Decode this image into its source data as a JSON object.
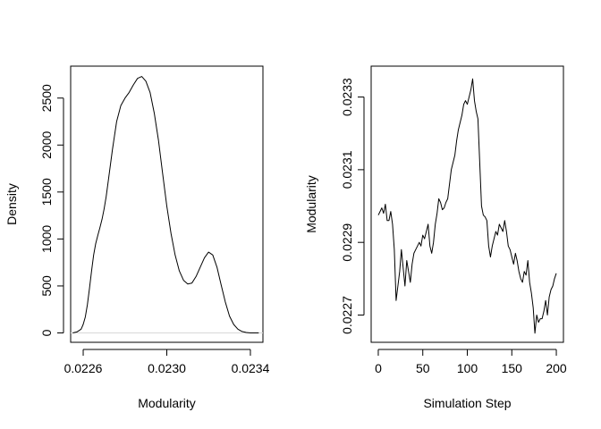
{
  "chart_data": [
    {
      "type": "line",
      "xlabel": "Modularity",
      "ylabel": "Density",
      "xlim": [
        0.02254,
        0.02346
      ],
      "ylim": [
        -100,
        2840
      ],
      "xticks": [
        {
          "value": 0.0226,
          "label": "0.0226"
        },
        {
          "value": 0.023,
          "label": "0.0230"
        },
        {
          "value": 0.0234,
          "label": "0.0234"
        }
      ],
      "yticks": [
        {
          "value": 0,
          "label": "0"
        },
        {
          "value": 500,
          "label": "500"
        },
        {
          "value": 1000,
          "label": "1000"
        },
        {
          "value": 1500,
          "label": "1500"
        },
        {
          "value": 2000,
          "label": "2000"
        },
        {
          "value": 2500,
          "label": "2500"
        }
      ],
      "zero_line": true,
      "series": [
        {
          "color": "#000000",
          "x": [
            0.02255,
            0.02257,
            0.02259,
            0.0226,
            0.02261,
            0.02262,
            0.02263,
            0.02264,
            0.02265,
            0.02266,
            0.02267,
            0.02268,
            0.02269,
            0.0227,
            0.02271,
            0.02272,
            0.02274,
            0.02276,
            0.02278,
            0.0228,
            0.02282,
            0.02284,
            0.02286,
            0.02288,
            0.0229,
            0.02292,
            0.02294,
            0.02296,
            0.02298,
            0.023,
            0.02302,
            0.02304,
            0.02306,
            0.02308,
            0.0231,
            0.02312,
            0.02314,
            0.02316,
            0.02318,
            0.0232,
            0.02322,
            0.02324,
            0.02326,
            0.02328,
            0.0233,
            0.02332,
            0.02334,
            0.02336,
            0.02338,
            0.0234,
            0.02342,
            0.02344
          ],
          "y": [
            0,
            10,
            40,
            90,
            170,
            300,
            470,
            660,
            830,
            950,
            1040,
            1120,
            1210,
            1320,
            1450,
            1620,
            1950,
            2250,
            2420,
            2500,
            2560,
            2640,
            2710,
            2730,
            2680,
            2560,
            2340,
            2050,
            1700,
            1350,
            1060,
            830,
            660,
            560,
            520,
            530,
            600,
            700,
            800,
            860,
            830,
            700,
            510,
            330,
            180,
            90,
            40,
            15,
            5,
            0,
            0,
            0
          ]
        }
      ]
    },
    {
      "type": "line",
      "xlabel": "Simulation Step",
      "ylabel": "Modularity",
      "xlim": [
        -8,
        208
      ],
      "ylim": [
        0.022625,
        0.023385
      ],
      "xticks": [
        {
          "value": 0,
          "label": "0"
        },
        {
          "value": 50,
          "label": "50"
        },
        {
          "value": 100,
          "label": "100"
        },
        {
          "value": 150,
          "label": "150"
        },
        {
          "value": 200,
          "label": "200"
        }
      ],
      "yticks": [
        {
          "value": 0.0227,
          "label": "0.0227"
        },
        {
          "value": 0.0229,
          "label": "0.0229"
        },
        {
          "value": 0.0231,
          "label": "0.0231"
        },
        {
          "value": 0.0233,
          "label": "0.0233"
        }
      ],
      "series": [
        {
          "color": "#000000",
          "x": [
            0,
            2,
            4,
            6,
            8,
            10,
            12,
            14,
            16,
            18,
            20,
            22,
            24,
            26,
            28,
            30,
            32,
            34,
            36,
            38,
            40,
            42,
            44,
            46,
            48,
            50,
            52,
            54,
            56,
            58,
            60,
            62,
            64,
            66,
            68,
            70,
            72,
            74,
            76,
            78,
            80,
            82,
            84,
            86,
            88,
            90,
            92,
            94,
            96,
            98,
            100,
            102,
            104,
            106,
            108,
            110,
            112,
            114,
            116,
            118,
            120,
            122,
            124,
            126,
            128,
            130,
            132,
            134,
            136,
            138,
            140,
            142,
            144,
            146,
            148,
            150,
            152,
            154,
            156,
            158,
            160,
            162,
            164,
            166,
            168,
            170,
            172,
            174,
            176,
            178,
            180,
            182,
            184,
            186,
            188,
            190,
            192,
            194,
            196,
            198,
            200
          ],
          "y": [
            0.022975,
            0.022985,
            0.022995,
            0.02298,
            0.023005,
            0.02296,
            0.02296,
            0.022985,
            0.02295,
            0.02288,
            0.02274,
            0.02278,
            0.02282,
            0.02288,
            0.02283,
            0.02278,
            0.02285,
            0.02282,
            0.02279,
            0.02284,
            0.02287,
            0.02288,
            0.02289,
            0.0229,
            0.02289,
            0.02292,
            0.02291,
            0.02293,
            0.02295,
            0.02289,
            0.02287,
            0.0229,
            0.02295,
            0.02298,
            0.02302,
            0.02301,
            0.02299,
            0.022995,
            0.02301,
            0.02302,
            0.02306,
            0.0231,
            0.02312,
            0.02314,
            0.02318,
            0.02321,
            0.02323,
            0.02325,
            0.02328,
            0.02329,
            0.02328,
            0.0233,
            0.02332,
            0.02335,
            0.02329,
            0.02326,
            0.02324,
            0.02312,
            0.023,
            0.022975,
            0.02297,
            0.02296,
            0.02289,
            0.02286,
            0.02289,
            0.02291,
            0.02293,
            0.02292,
            0.02295,
            0.02294,
            0.02293,
            0.02296,
            0.02293,
            0.02289,
            0.02288,
            0.02286,
            0.02284,
            0.02287,
            0.02285,
            0.02282,
            0.0228,
            0.02279,
            0.02282,
            0.02281,
            0.02285,
            0.02279,
            0.02276,
            0.02272,
            0.02265,
            0.0227,
            0.02268,
            0.02269,
            0.02269,
            0.02271,
            0.02274,
            0.0227,
            0.02275,
            0.02277,
            0.02278,
            0.0228,
            0.022815
          ]
        }
      ]
    }
  ]
}
